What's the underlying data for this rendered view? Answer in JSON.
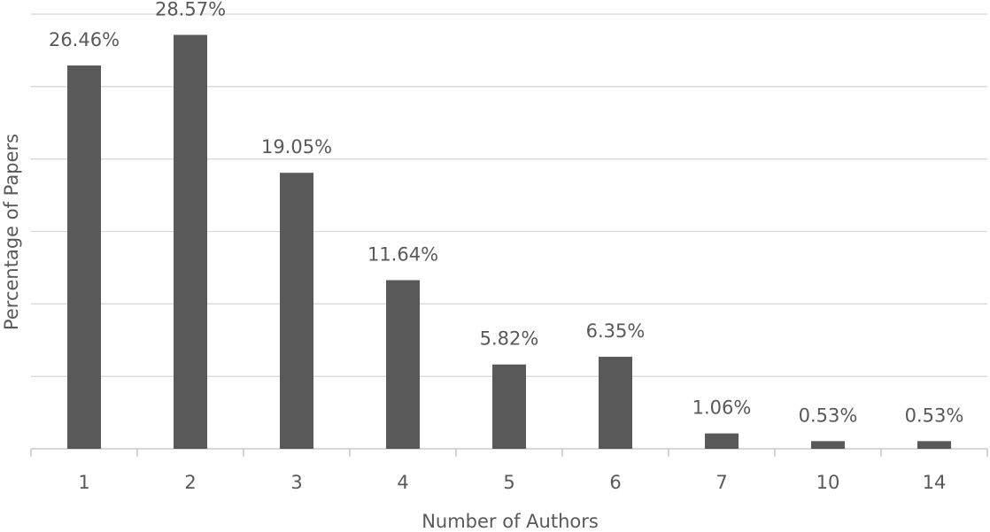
{
  "chart_data": {
    "type": "bar",
    "x_label": "Number of Authors",
    "y_label": "Percentage of Papers",
    "categories": [
      "1",
      "2",
      "3",
      "4",
      "5",
      "6",
      "7",
      "10",
      "14"
    ],
    "values": [
      26.46,
      28.57,
      19.05,
      11.64,
      5.82,
      6.35,
      1.06,
      0.53,
      0.53
    ],
    "value_labels": [
      "26.46%",
      "28.57%",
      "19.05%",
      "11.64%",
      "5.82%",
      "6.35%",
      "1.06%",
      "0.53%",
      "0.53%"
    ],
    "color": "#595959",
    "ylim": [
      0,
      30
    ],
    "yticks": [
      0,
      5,
      10,
      15,
      20,
      25,
      30
    ],
    "grid": true
  }
}
